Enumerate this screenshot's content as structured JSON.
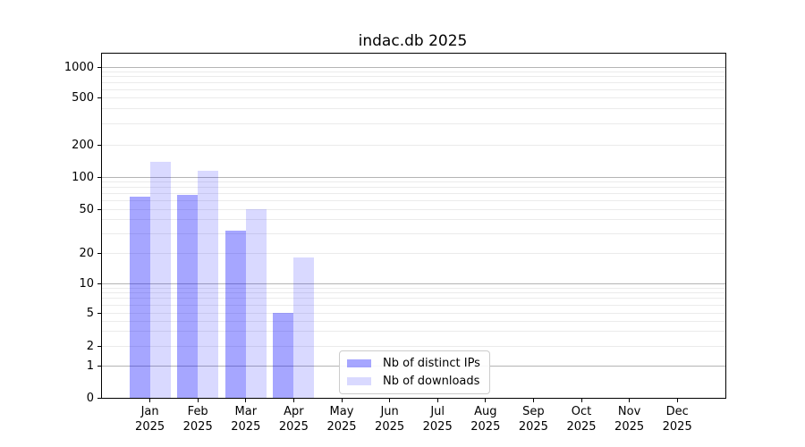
{
  "chart_data": {
    "type": "bar",
    "title": "indac.db 2025",
    "scale": "symlog",
    "year": "2025",
    "months": [
      "Jan",
      "Feb",
      "Mar",
      "Apr",
      "May",
      "Jun",
      "Jul",
      "Aug",
      "Sep",
      "Oct",
      "Nov",
      "Dec"
    ],
    "categories": [
      "Jan 2025",
      "Feb 2025",
      "Mar 2025",
      "Apr 2025",
      "May 2025",
      "Jun 2025",
      "Jul 2025",
      "Aug 2025",
      "Sep 2025",
      "Oct 2025",
      "Nov 2025",
      "Dec 2025"
    ],
    "series": [
      {
        "name": "Nb of distinct IPs",
        "color": "rgba(0,0,255,0.35)",
        "values": [
          65,
          68,
          32,
          5,
          0,
          0,
          0,
          0,
          0,
          0,
          0,
          0
        ]
      },
      {
        "name": "Nb of downloads",
        "color": "rgba(0,0,255,0.15)",
        "values": [
          140,
          115,
          50,
          18,
          0,
          0,
          0,
          0,
          0,
          0,
          0,
          0
        ]
      }
    ],
    "y_ticks": [
      0,
      1,
      2,
      5,
      10,
      20,
      50,
      100,
      200,
      500,
      1000
    ],
    "ylim": [
      0,
      1500
    ],
    "grid": {
      "major": true,
      "minor": true
    },
    "legend_position": "lower center"
  },
  "colors": {
    "grid_major": "#b4b4b4",
    "grid_minor": "#ebebeb",
    "spine": "#000000",
    "background": "#ffffff",
    "text": "#000000"
  }
}
